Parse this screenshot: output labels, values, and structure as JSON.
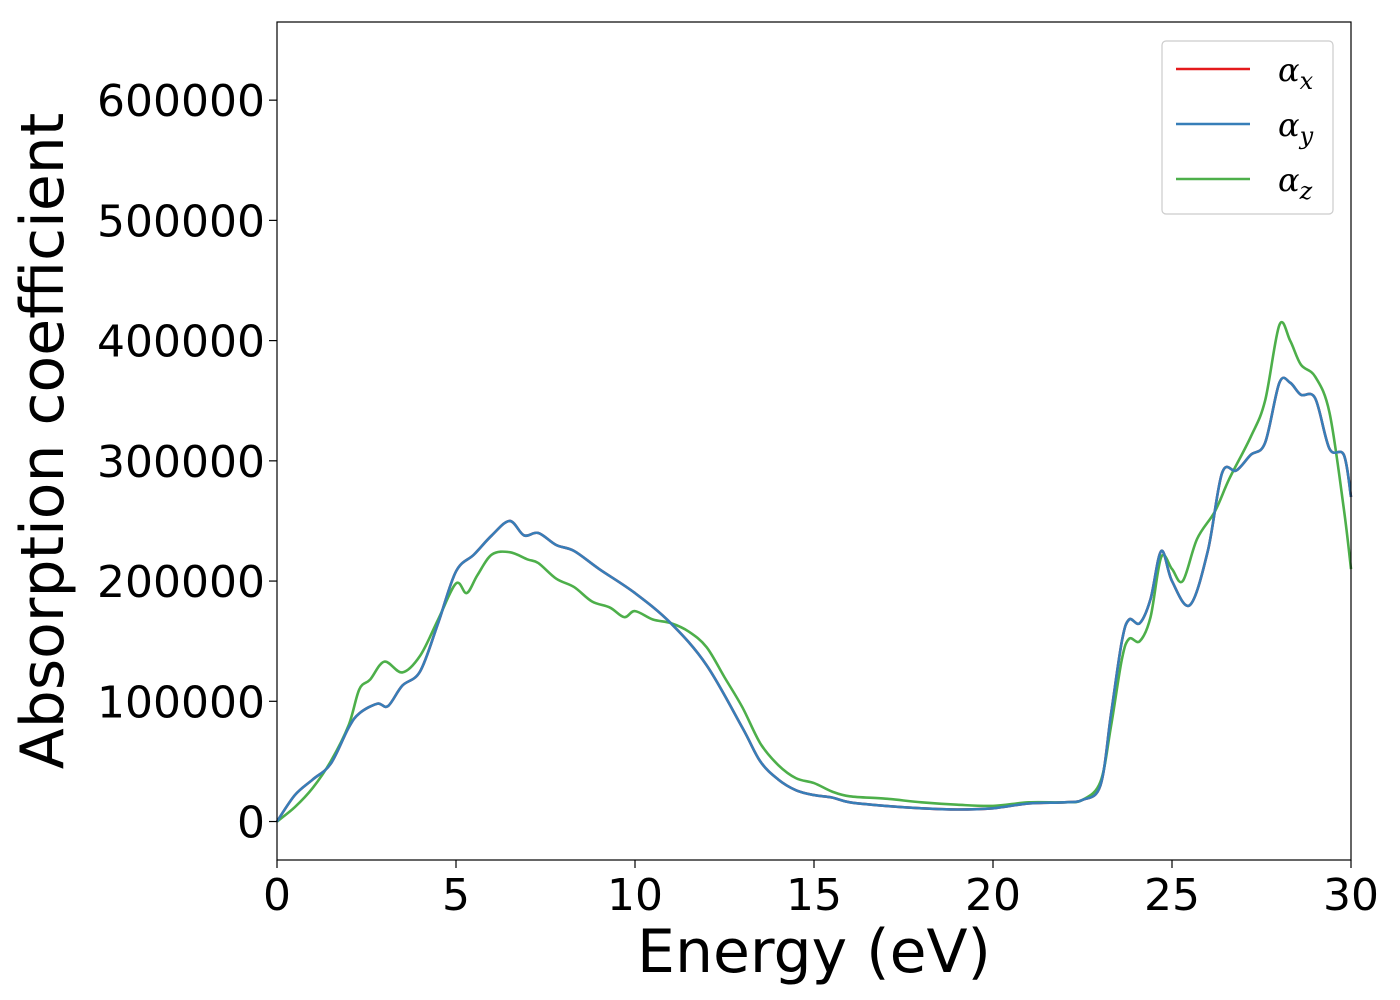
{
  "chart_data": {
    "type": "line",
    "xlabel": "Energy (eV)",
    "ylabel": "Absorption coefficient",
    "xlim": [
      0,
      30
    ],
    "ylim": [
      -32000,
      665000
    ],
    "x_ticks": [
      "0",
      "5",
      "10",
      "15",
      "20",
      "25",
      "30"
    ],
    "y_ticks": [
      "0",
      "100000",
      "200000",
      "300000",
      "400000",
      "500000",
      "600000"
    ],
    "grid": false,
    "legend_position": "top-right",
    "series": [
      {
        "name": "αx",
        "name_symbol": "α",
        "name_sub": "x",
        "color": "#e41a1c",
        "points": [
          [
            0,
            0
          ],
          [
            0.5,
            22000
          ],
          [
            1,
            35000
          ],
          [
            1.5,
            48000
          ],
          [
            2,
            78000
          ],
          [
            2.3,
            90000
          ],
          [
            2.8,
            98000
          ],
          [
            3.1,
            96000
          ],
          [
            3.5,
            113000
          ],
          [
            4,
            125000
          ],
          [
            4.5,
            165000
          ],
          [
            5,
            208000
          ],
          [
            5.5,
            222000
          ],
          [
            6,
            238000
          ],
          [
            6.5,
            250000
          ],
          [
            6.9,
            238000
          ],
          [
            7.3,
            240000
          ],
          [
            7.8,
            230000
          ],
          [
            8.3,
            225000
          ],
          [
            9,
            210000
          ],
          [
            10,
            190000
          ],
          [
            11,
            165000
          ],
          [
            12,
            130000
          ],
          [
            13,
            78000
          ],
          [
            13.5,
            50000
          ],
          [
            14,
            35000
          ],
          [
            14.5,
            26000
          ],
          [
            15,
            22000
          ],
          [
            15.5,
            20000
          ],
          [
            16,
            16000
          ],
          [
            17,
            13000
          ],
          [
            18,
            11000
          ],
          [
            19,
            10000
          ],
          [
            20,
            11000
          ],
          [
            21,
            15000
          ],
          [
            22,
            16000
          ],
          [
            22.5,
            18000
          ],
          [
            23,
            30000
          ],
          [
            23.3,
            90000
          ],
          [
            23.6,
            150000
          ],
          [
            23.8,
            168000
          ],
          [
            24.1,
            165000
          ],
          [
            24.4,
            185000
          ],
          [
            24.7,
            225000
          ],
          [
            25,
            200000
          ],
          [
            25.5,
            180000
          ],
          [
            26,
            225000
          ],
          [
            26.4,
            290000
          ],
          [
            26.8,
            292000
          ],
          [
            27.2,
            305000
          ],
          [
            27.6,
            315000
          ],
          [
            28,
            365000
          ],
          [
            28.3,
            365000
          ],
          [
            28.6,
            355000
          ],
          [
            29,
            352000
          ],
          [
            29.4,
            310000
          ],
          [
            29.8,
            305000
          ],
          [
            30,
            270000
          ]
        ]
      },
      {
        "name": "αy",
        "name_symbol": "α",
        "name_sub": "y",
        "color": "#377eb8",
        "points": [
          [
            0,
            0
          ],
          [
            0.5,
            22000
          ],
          [
            1,
            35000
          ],
          [
            1.5,
            48000
          ],
          [
            2,
            78000
          ],
          [
            2.3,
            90000
          ],
          [
            2.8,
            98000
          ],
          [
            3.1,
            96000
          ],
          [
            3.5,
            113000
          ],
          [
            4,
            125000
          ],
          [
            4.5,
            165000
          ],
          [
            5,
            208000
          ],
          [
            5.5,
            222000
          ],
          [
            6,
            238000
          ],
          [
            6.5,
            250000
          ],
          [
            6.9,
            238000
          ],
          [
            7.3,
            240000
          ],
          [
            7.8,
            230000
          ],
          [
            8.3,
            225000
          ],
          [
            9,
            210000
          ],
          [
            10,
            190000
          ],
          [
            11,
            165000
          ],
          [
            12,
            130000
          ],
          [
            13,
            78000
          ],
          [
            13.5,
            50000
          ],
          [
            14,
            35000
          ],
          [
            14.5,
            26000
          ],
          [
            15,
            22000
          ],
          [
            15.5,
            20000
          ],
          [
            16,
            16000
          ],
          [
            17,
            13000
          ],
          [
            18,
            11000
          ],
          [
            19,
            10000
          ],
          [
            20,
            11000
          ],
          [
            21,
            15000
          ],
          [
            22,
            16000
          ],
          [
            22.5,
            18000
          ],
          [
            23,
            30000
          ],
          [
            23.3,
            90000
          ],
          [
            23.6,
            150000
          ],
          [
            23.8,
            168000
          ],
          [
            24.1,
            165000
          ],
          [
            24.4,
            185000
          ],
          [
            24.7,
            225000
          ],
          [
            25,
            200000
          ],
          [
            25.5,
            180000
          ],
          [
            26,
            225000
          ],
          [
            26.4,
            290000
          ],
          [
            26.8,
            292000
          ],
          [
            27.2,
            305000
          ],
          [
            27.6,
            315000
          ],
          [
            28,
            365000
          ],
          [
            28.3,
            365000
          ],
          [
            28.6,
            355000
          ],
          [
            29,
            352000
          ],
          [
            29.4,
            310000
          ],
          [
            29.8,
            305000
          ],
          [
            30,
            270000
          ]
        ]
      },
      {
        "name": "αz",
        "name_symbol": "α",
        "name_sub": "z",
        "color": "#4daf4a",
        "points": [
          [
            0,
            0
          ],
          [
            0.5,
            12000
          ],
          [
            1,
            28000
          ],
          [
            1.5,
            50000
          ],
          [
            2,
            80000
          ],
          [
            2.3,
            110000
          ],
          [
            2.6,
            118000
          ],
          [
            3,
            133000
          ],
          [
            3.5,
            124000
          ],
          [
            4,
            138000
          ],
          [
            4.5,
            168000
          ],
          [
            5,
            198000
          ],
          [
            5.3,
            190000
          ],
          [
            5.6,
            205000
          ],
          [
            6,
            222000
          ],
          [
            6.5,
            224000
          ],
          [
            7,
            218000
          ],
          [
            7.3,
            215000
          ],
          [
            7.8,
            202000
          ],
          [
            8.3,
            195000
          ],
          [
            8.8,
            183000
          ],
          [
            9.3,
            178000
          ],
          [
            9.7,
            170000
          ],
          [
            10,
            175000
          ],
          [
            10.5,
            168000
          ],
          [
            11,
            165000
          ],
          [
            11.5,
            158000
          ],
          [
            12,
            145000
          ],
          [
            12.5,
            120000
          ],
          [
            13,
            95000
          ],
          [
            13.5,
            65000
          ],
          [
            14,
            47000
          ],
          [
            14.5,
            36000
          ],
          [
            15,
            32000
          ],
          [
            15.5,
            25000
          ],
          [
            16,
            21000
          ],
          [
            17,
            19000
          ],
          [
            18,
            16000
          ],
          [
            19,
            14000
          ],
          [
            20,
            13000
          ],
          [
            21,
            16000
          ],
          [
            22,
            16000
          ],
          [
            22.5,
            18000
          ],
          [
            23,
            33000
          ],
          [
            23.3,
            80000
          ],
          [
            23.6,
            135000
          ],
          [
            23.8,
            152000
          ],
          [
            24.1,
            150000
          ],
          [
            24.4,
            170000
          ],
          [
            24.7,
            220000
          ],
          [
            25,
            210000
          ],
          [
            25.3,
            200000
          ],
          [
            25.7,
            235000
          ],
          [
            26.2,
            258000
          ],
          [
            26.6,
            285000
          ],
          [
            27.2,
            320000
          ],
          [
            27.6,
            350000
          ],
          [
            28,
            413000
          ],
          [
            28.3,
            400000
          ],
          [
            28.6,
            380000
          ],
          [
            29,
            370000
          ],
          [
            29.4,
            340000
          ],
          [
            29.8,
            260000
          ],
          [
            30,
            210000
          ]
        ]
      }
    ]
  }
}
